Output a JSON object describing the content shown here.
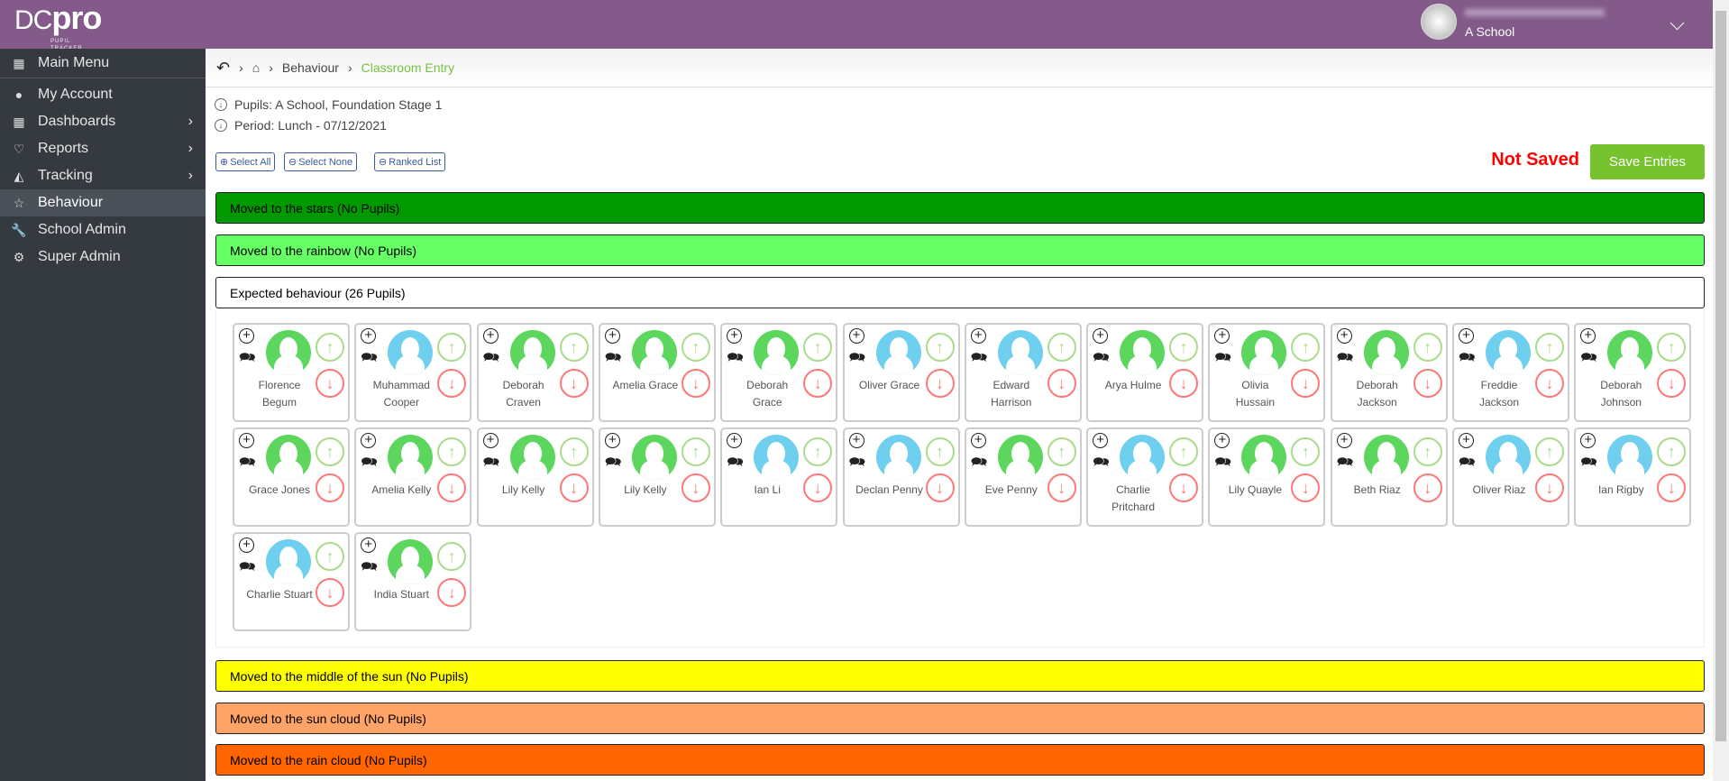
{
  "header": {
    "logo": "DCpro",
    "logo_sub": "PUPIL TRACKER",
    "school": "A School",
    "color": "#835a8a"
  },
  "sidebar": {
    "items": [
      {
        "label": "Main Menu",
        "icon": "grid-icon",
        "arrow": false
      },
      {
        "label": "My Account",
        "icon": "user-icon",
        "arrow": false
      },
      {
        "label": "Dashboards",
        "icon": "dashboard-icon",
        "arrow": true
      },
      {
        "label": "Reports",
        "icon": "heart-icon",
        "arrow": true
      },
      {
        "label": "Tracking",
        "icon": "chart-icon",
        "arrow": true
      },
      {
        "label": "Behaviour",
        "icon": "star-icon",
        "arrow": false,
        "active": true
      },
      {
        "label": "School Admin",
        "icon": "wrench-icon",
        "arrow": false
      },
      {
        "label": "Super Admin",
        "icon": "cog-icon",
        "arrow": false
      }
    ]
  },
  "breadcrumb": {
    "items": [
      "Behaviour"
    ],
    "current": "Classroom Entry"
  },
  "info": {
    "pupils": "Pupils: A School, Foundation Stage 1",
    "period": "Period: Lunch - 07/12/2021"
  },
  "toolbar": {
    "select_all": "Select All",
    "select_none": "Select None",
    "ranked_list": "Ranked List",
    "status": "Not Saved",
    "save": "Save Entries"
  },
  "groups": [
    {
      "label": "Moved to the stars (No Pupils)",
      "color": "#009900"
    },
    {
      "label": "Moved to the rainbow (No Pupils)",
      "color": "#66ff66"
    },
    {
      "label": "Expected behaviour (26 Pupils)",
      "color": "#ffffff"
    },
    {
      "label": "Moved to the middle of the sun (No Pupils)",
      "color": "#ffff00"
    },
    {
      "label": "Moved to the sun cloud (No Pupils)",
      "color": "#ffa366"
    },
    {
      "label": "Moved to the rain cloud (No Pupils)",
      "color": "#ff6600"
    }
  ],
  "avatar_colors": {
    "girl": "#5cd65c",
    "boy": "#6ecfee"
  },
  "pupils": [
    {
      "name": "Florence Begum",
      "type": "girl"
    },
    {
      "name": "Muhammad Cooper",
      "type": "boy"
    },
    {
      "name": "Deborah Craven",
      "type": "girl"
    },
    {
      "name": "Amelia Grace",
      "type": "girl"
    },
    {
      "name": "Deborah Grace",
      "type": "girl"
    },
    {
      "name": "Oliver Grace",
      "type": "boy"
    },
    {
      "name": "Edward Harrison",
      "type": "boy"
    },
    {
      "name": "Arya Hulme",
      "type": "girl"
    },
    {
      "name": "Olivia Hussain",
      "type": "girl"
    },
    {
      "name": "Deborah Jackson",
      "type": "girl"
    },
    {
      "name": "Freddie Jackson",
      "type": "boy"
    },
    {
      "name": "Deborah Johnson",
      "type": "girl"
    },
    {
      "name": "Grace Jones",
      "type": "girl"
    },
    {
      "name": "Amelia Kelly",
      "type": "girl"
    },
    {
      "name": "Lily Kelly",
      "type": "girl"
    },
    {
      "name": "Lily Kelly",
      "type": "girl"
    },
    {
      "name": "Ian Li",
      "type": "boy"
    },
    {
      "name": "Declan Penny",
      "type": "boy"
    },
    {
      "name": "Eve Penny",
      "type": "girl"
    },
    {
      "name": "Charlie Pritchard",
      "type": "boy"
    },
    {
      "name": "Lily Quayle",
      "type": "girl"
    },
    {
      "name": "Beth Riaz",
      "type": "girl"
    },
    {
      "name": "Oliver Riaz",
      "type": "boy"
    },
    {
      "name": "Ian Rigby",
      "type": "boy"
    },
    {
      "name": "Charlie Stuart",
      "type": "boy"
    },
    {
      "name": "India Stuart",
      "type": "girl"
    }
  ]
}
